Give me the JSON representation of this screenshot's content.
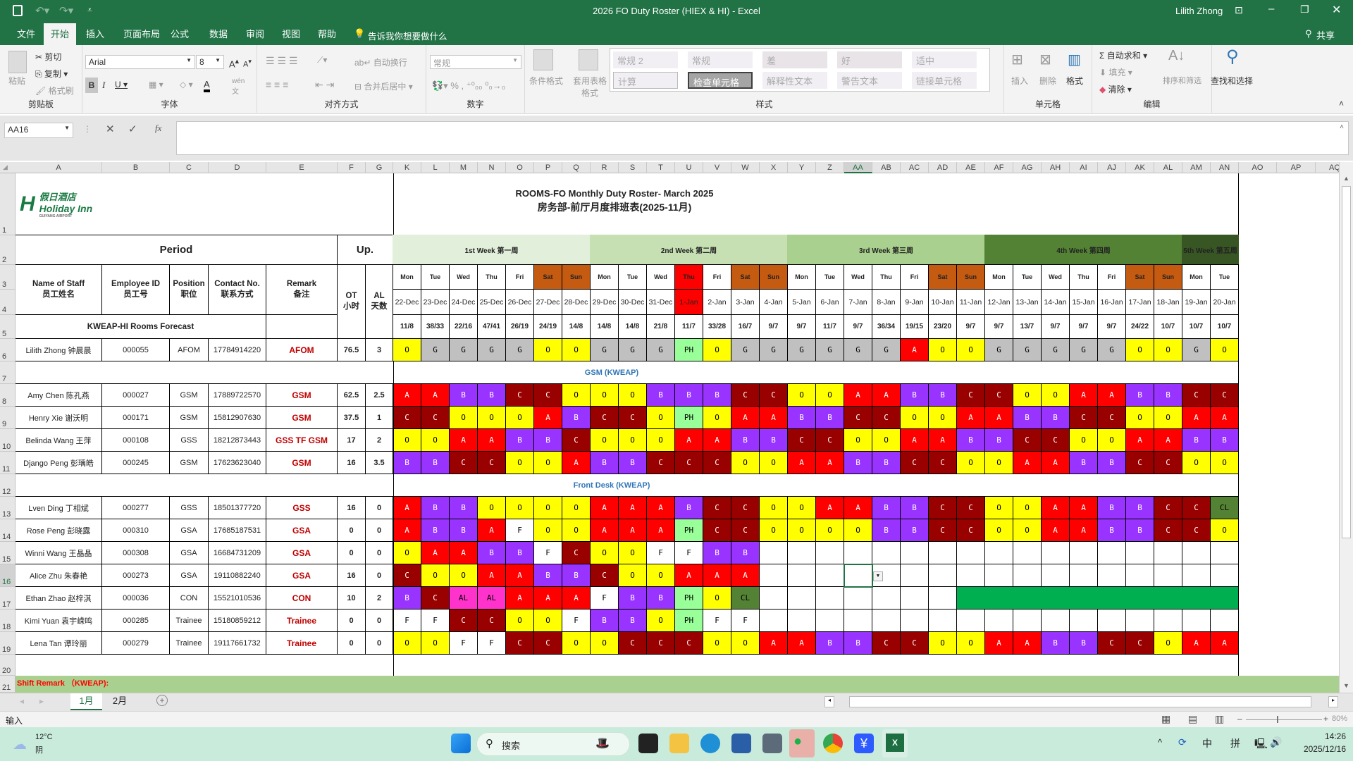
{
  "window": {
    "title": "2026 FO Duty Roster (HIEX & HI)  -  Excel",
    "user": "Lilith Zhong",
    "share": "共享"
  },
  "menu_tabs": [
    "文件",
    "开始",
    "插入",
    "页面布局",
    "公式",
    "数据",
    "审阅",
    "视图",
    "帮助"
  ],
  "active_tab": "开始",
  "tell_me": "告诉我你想要做什么",
  "ribbon": {
    "clipboard": {
      "label": "剪贴板",
      "paste": "粘贴",
      "cut": "剪切",
      "copy": "复制",
      "format_painter": "格式刷"
    },
    "font": {
      "label": "字体",
      "name": "Arial",
      "size": "8"
    },
    "alignment": {
      "label": "对齐方式",
      "wrap": "自动换行",
      "merge": "合并后居中"
    },
    "number": {
      "label": "数字",
      "format": "常规"
    },
    "styles": {
      "label": "样式",
      "conditional": "条件格式",
      "table": "套用表格格式",
      "cells": [
        "常规 2",
        "常规",
        "差",
        "好",
        "适中",
        "计算",
        "检查单元格",
        "解释性文本",
        "警告文本",
        "链接单元格"
      ]
    },
    "cells": {
      "label": "单元格",
      "insert": "插入",
      "delete": "删除",
      "format": "格式"
    },
    "editing": {
      "label": "编辑",
      "autosum": "自动求和",
      "fill": "填充",
      "clear": "清除",
      "sort": "排序和筛选",
      "find": "查找和选择"
    }
  },
  "name_box": "AA16",
  "formula": "",
  "column_headers": [
    "A",
    "B",
    "C",
    "D",
    "E",
    "F",
    "G",
    "K",
    "L",
    "M",
    "N",
    "O",
    "P",
    "Q",
    "R",
    "S",
    "T",
    "U",
    "V",
    "W",
    "X",
    "Y",
    "Z",
    "AA",
    "AB",
    "AC",
    "AD",
    "AE",
    "AF",
    "AG",
    "AH",
    "AI",
    "AJ",
    "AK",
    "AL",
    "AM",
    "AN",
    "AO",
    "AP",
    "AQ"
  ],
  "selected_column": "AA",
  "row_headers": [
    "1",
    "2",
    "3",
    "4",
    "5",
    "6",
    "7",
    "8",
    "9",
    "10",
    "11",
    "12",
    "13",
    "14",
    "15",
    "16",
    "17",
    "18",
    "19",
    "20",
    "21"
  ],
  "selected_row": "16",
  "sheet": {
    "logo": {
      "cn": "假日酒店",
      "en": "Holiday Inn",
      "sub": "GUIYANG AIRPORT"
    },
    "title_en": "ROOMS-FO Monthly Duty Roster- March 2025",
    "title_cn": "房务部-前厅月度排班表(2025-11月)",
    "period": "Period",
    "up": "Up.",
    "headers": {
      "name": "Name of Staff",
      "name_cn": "员工姓名",
      "id": "Employee ID",
      "id_cn": "员工号",
      "position": "Position",
      "position_cn": "职位",
      "contact": "Contact No.",
      "contact_cn": "联系方式",
      "remark": "Remark",
      "remark_cn": "备注",
      "ot": "OT",
      "ot_cn": "小时",
      "al": "AL",
      "al_cn": "天数"
    },
    "forecast_label": "KWEAP-HI Rooms Forecast",
    "weeks": [
      {
        "label": "1st Week 第一周",
        "color": "#e2efda"
      },
      {
        "label": "2nd Week 第二周",
        "color": "#c6e0b4"
      },
      {
        "label": "3rd Week 第三周",
        "color": "#a9d08e"
      },
      {
        "label": "4th Week 第四周",
        "color": "#548235"
      },
      {
        "label": "5th Week 第五周",
        "color": "#375623"
      }
    ],
    "days": [
      "Mon",
      "Tue",
      "Wed",
      "Thu",
      "Fri",
      "Sat",
      "Sun",
      "Mon",
      "Tue",
      "Wed",
      "Thu",
      "Fri",
      "Sat",
      "Sun",
      "Mon",
      "Tue",
      "Wed",
      "Thu",
      "Fri",
      "Sat",
      "Sun",
      "Mon",
      "Tue",
      "Wed",
      "Thu",
      "Fri",
      "Sat",
      "Sun",
      "Mon",
      "Tue"
    ],
    "dates": [
      "22-Dec",
      "23-Dec",
      "24-Dec",
      "25-Dec",
      "26-Dec",
      "27-Dec",
      "28-Dec",
      "29-Dec",
      "30-Dec",
      "31-Dec",
      "1-Jan",
      "2-Jan",
      "3-Jan",
      "4-Jan",
      "5-Jan",
      "6-Jan",
      "7-Jan",
      "8-Jan",
      "9-Jan",
      "10-Jan",
      "11-Jan",
      "12-Jan",
      "13-Jan",
      "14-Jan",
      "15-Jan",
      "16-Jan",
      "17-Jan",
      "18-Jan",
      "19-Jan",
      "20-Jan"
    ],
    "holiday_date": "1-Jan",
    "forecast": [
      "11/8",
      "38/33",
      "22/16",
      "47/41",
      "26/19",
      "24/19",
      "14/8",
      "14/8",
      "14/8",
      "21/8",
      "11/7",
      "33/28",
      "16/7",
      "9/7",
      "9/7",
      "11/7",
      "9/7",
      "36/34",
      "19/15",
      "23/20",
      "9/7",
      "9/7",
      "13/7",
      "9/7",
      "9/7",
      "9/7",
      "24/22",
      "10/7",
      "10/7",
      "10/7"
    ],
    "section_gsm": "GSM (KWEAP)",
    "section_fd": "Front Desk (KWEAP)",
    "shift_remark": "Shift Remark （KWEAP):",
    "manager": {
      "name": "Lilith Zhong 钟晨晨",
      "id": "000055",
      "position": "AFOM",
      "contact": "17784914220",
      "remark": "AFOM",
      "ot": "76.5",
      "al": "3",
      "shifts": [
        "O",
        "G",
        "G",
        "G",
        "G",
        "O",
        "O",
        "G",
        "G",
        "G",
        "PH",
        "O",
        "G",
        "G",
        "G",
        "G",
        "G",
        "G",
        "A",
        "O",
        "O",
        "G",
        "G",
        "G",
        "G",
        "G",
        "O",
        "O",
        "G",
        "O"
      ]
    },
    "gsm_staff": [
      {
        "name": "Amy Chen 陈孔燕",
        "id": "000027",
        "position": "GSM",
        "contact": "17889722570",
        "remark": "GSM",
        "ot": "62.5",
        "al": "2.5",
        "shifts": [
          "A",
          "A",
          "B",
          "B",
          "C",
          "C",
          "O",
          "O",
          "O",
          "B",
          "B",
          "B",
          "C",
          "C",
          "O",
          "O",
          "A",
          "A",
          "B",
          "B",
          "C",
          "C",
          "O",
          "O",
          "A",
          "A",
          "B",
          "B",
          "C",
          "C"
        ]
      },
      {
        "name": "Henry Xie 谢沃明",
        "id": "000171",
        "position": "GSM",
        "contact": "15812907630",
        "remark": "GSM",
        "ot": "37.5",
        "al": "1",
        "shifts": [
          "C",
          "C",
          "O",
          "O",
          "O",
          "A",
          "B",
          "C",
          "C",
          "O",
          "PH",
          "O",
          "A",
          "A",
          "B",
          "B",
          "C",
          "C",
          "O",
          "O",
          "A",
          "A",
          "B",
          "B",
          "C",
          "C",
          "O",
          "O",
          "A",
          "A"
        ]
      },
      {
        "name": "Belinda Wang 王萍",
        "id": "000108",
        "position": "GSS",
        "contact": "18212873443",
        "remark": "GSS TF GSM",
        "ot": "17",
        "al": "2",
        "shifts": [
          "O",
          "O",
          "A",
          "A",
          "B",
          "B",
          "C",
          "O",
          "O",
          "O",
          "A",
          "A",
          "B",
          "B",
          "C",
          "C",
          "O",
          "O",
          "A",
          "A",
          "B",
          "B",
          "C",
          "C",
          "O",
          "O",
          "A",
          "A",
          "B",
          "B"
        ]
      },
      {
        "name": "Django Peng 彭瑀皓",
        "id": "000245",
        "position": "GSM",
        "contact": "17623623040",
        "remark": "GSM",
        "ot": "16",
        "al": "3.5",
        "shifts": [
          "B",
          "B",
          "C",
          "C",
          "O",
          "O",
          "A",
          "B",
          "B",
          "C",
          "C",
          "C",
          "O",
          "O",
          "A",
          "A",
          "B",
          "B",
          "C",
          "C",
          "O",
          "O",
          "A",
          "A",
          "B",
          "B",
          "C",
          "C",
          "O",
          "O"
        ]
      }
    ],
    "fd_staff": [
      {
        "name": "Lven Ding 丁相斌",
        "id": "000277",
        "position": "GSS",
        "contact": "18501377720",
        "remark": "GSS",
        "ot": "16",
        "al": "0",
        "shifts": [
          "A",
          "B",
          "B",
          "O",
          "O",
          "O",
          "O",
          "A",
          "A",
          "A",
          "B",
          "C",
          "C",
          "O",
          "O",
          "A",
          "A",
          "B",
          "B",
          "C",
          "C",
          "O",
          "O",
          "A",
          "A",
          "B",
          "B",
          "C",
          "C",
          "CL"
        ]
      },
      {
        "name": "Rose Peng 彭晓露",
        "id": "000310",
        "position": "GSA",
        "contact": "17685187531",
        "remark": "GSA",
        "ot": "0",
        "al": "0",
        "shifts": [
          "A",
          "B",
          "B",
          "A",
          "F",
          "O",
          "O",
          "A",
          "A",
          "A",
          "PH",
          "C",
          "C",
          "O",
          "O",
          "O",
          "O",
          "B",
          "B",
          "C",
          "C",
          "O",
          "O",
          "A",
          "A",
          "B",
          "B",
          "C",
          "C",
          "O"
        ]
      },
      {
        "name": "Winni Wang 王晶晶",
        "id": "000308",
        "position": "GSA",
        "contact": "16684731209",
        "remark": "GSA",
        "ot": "0",
        "al": "0",
        "shifts": [
          "O",
          "A",
          "A",
          "B",
          "B",
          "F",
          "C",
          "O",
          "O",
          "F",
          "F",
          "B",
          "B",
          "",
          "",
          "",
          "",
          "",
          "",
          "",
          "",
          "",
          "",
          "",
          "",
          "",
          "",
          "",
          "",
          ""
        ]
      },
      {
        "name": "Alice Zhu 朱春艳",
        "id": "000273",
        "position": "GSA",
        "contact": "19110882240",
        "remark": "GSA",
        "ot": "16",
        "al": "0",
        "shifts": [
          "C",
          "O",
          "O",
          "A",
          "A",
          "B",
          "B",
          "C",
          "O",
          "O",
          "A",
          "A",
          "A",
          "",
          "",
          "",
          "",
          "",
          "",
          "",
          "",
          "",
          "",
          "",
          "",
          "",
          "",
          "",
          "",
          ""
        ]
      },
      {
        "name": "Ethan Zhao 赵梓淇",
        "id": "000036",
        "position": "CON",
        "contact": "15521010536",
        "remark": "CON",
        "ot": "10",
        "al": "2",
        "shifts": [
          "B",
          "C",
          "AL",
          "AL",
          "A",
          "A",
          "A",
          "F",
          "B",
          "B",
          "PH",
          "O",
          "CL",
          "",
          "",
          "",
          "",
          "",
          "",
          "",
          "",
          "",
          "",
          "",
          "",
          "",
          "",
          "",
          "",
          ""
        ],
        "highlight": "#00b050"
      },
      {
        "name": "Kimi Yuan 袁宇嵘鸣",
        "id": "000285",
        "position": "Trainee",
        "contact": "15180859212",
        "remark": "Trainee",
        "ot": "0",
        "al": "0",
        "shifts": [
          "F",
          "F",
          "C",
          "C",
          "O",
          "O",
          "F",
          "B",
          "B",
          "O",
          "PH",
          "F",
          "F",
          "",
          "",
          "",
          "",
          "",
          "",
          "",
          "",
          "",
          "",
          "",
          "",
          "",
          "",
          "",
          "",
          ""
        ]
      },
      {
        "name": "Lena Tan 谭玲丽",
        "id": "000279",
        "position": "Trainee",
        "contact": "19117661732",
        "remark": "Trainee",
        "ot": "0",
        "al": "0",
        "shifts": [
          "O",
          "O",
          "F",
          "F",
          "C",
          "C",
          "O",
          "O",
          "C",
          "C",
          "C",
          "O",
          "O",
          "A",
          "A",
          "B",
          "B",
          "C",
          "C",
          "O",
          "O",
          "A",
          "A",
          "B",
          "B",
          "C",
          "C",
          "O",
          "A",
          "A"
        ]
      }
    ]
  },
  "shift_colors": {
    "A": {
      "bg": "#ff0000",
      "fg": "#ffffff"
    },
    "B": {
      "bg": "#9933ff",
      "fg": "#ffffff"
    },
    "C": {
      "bg": "#990000",
      "fg": "#ffffff"
    },
    "O": {
      "bg": "#ffff00",
      "fg": "#000000"
    },
    "G": {
      "bg": "#c0c0c0",
      "fg": "#000000"
    },
    "PH": {
      "bg": "#99ff99",
      "fg": "#000000"
    },
    "F": {
      "bg": "#ffffff",
      "fg": "#000000"
    },
    "AL": {
      "bg": "#ff33cc",
      "fg": "#000000"
    },
    "CL": {
      "bg": "#548235",
      "fg": "#000000"
    }
  },
  "weekend_color": "#c55a11",
  "holiday_color": "#ff0000",
  "remark_color": "#c00000",
  "section_color": "#2e75b6",
  "sheet_tabs": [
    "1月",
    "2月"
  ],
  "active_sheet": "1月",
  "status": {
    "mode": "输入",
    "zoom": "80%"
  },
  "taskbar": {
    "temp": "12°C",
    "weather": "阴",
    "search": "搜索",
    "ime1": "中",
    "ime2": "拼",
    "time": "14:26",
    "date": "2025/12/16"
  }
}
